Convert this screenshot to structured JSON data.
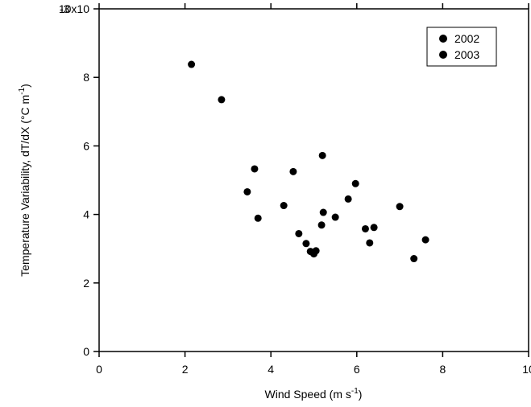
{
  "chart_data": {
    "type": "scatter",
    "title": "",
    "xlabel": {
      "prefix": "Wind Speed (m s",
      "superscript": "-1",
      "suffix": ")"
    },
    "ylabel": {
      "prefix": "Temperature Variability, dT/dX (°C m",
      "superscript": "-1",
      "suffix": ")"
    },
    "xlim": [
      0,
      10
    ],
    "ylim": [
      0,
      0.01
    ],
    "x_ticks": [
      {
        "value": 0,
        "label": "0"
      },
      {
        "value": 2,
        "label": "2"
      },
      {
        "value": 4,
        "label": "4"
      },
      {
        "value": 6,
        "label": "6"
      },
      {
        "value": 8,
        "label": "8"
      },
      {
        "value": 10,
        "label": "10"
      }
    ],
    "y_ticks": [
      {
        "value": 0,
        "label": "0"
      },
      {
        "value": 0.002,
        "label": "2"
      },
      {
        "value": 0.004,
        "label": "4"
      },
      {
        "value": 0.006,
        "label": "6"
      },
      {
        "value": 0.008,
        "label": "8"
      },
      {
        "value": 0.01,
        "label": "10x10"
      }
    ],
    "y_exponent_label": "-3",
    "grid": false,
    "legend": {
      "placement": "top-right",
      "entries": [
        "2002",
        "2003"
      ]
    },
    "marker_color": "#000000",
    "series": [
      {
        "name": "2002",
        "points": [
          [
            2.15,
            0.00838
          ],
          [
            2.85,
            0.00735
          ],
          [
            3.45,
            0.00466
          ],
          [
            3.62,
            0.00533
          ],
          [
            3.7,
            0.00389
          ],
          [
            4.3,
            0.00426
          ],
          [
            4.52,
            0.00525
          ],
          [
            4.65,
            0.00344
          ],
          [
            4.82,
            0.00315
          ],
          [
            4.92,
            0.00292
          ],
          [
            5.0,
            0.00285
          ],
          [
            5.05,
            0.00294
          ],
          [
            5.18,
            0.00369
          ],
          [
            5.2,
            0.00572
          ],
          [
            5.22,
            0.00406
          ]
        ]
      },
      {
        "name": "2003",
        "points": [
          [
            5.5,
            0.00392
          ],
          [
            5.8,
            0.00445
          ],
          [
            5.97,
            0.0049
          ],
          [
            6.2,
            0.00358
          ],
          [
            6.3,
            0.00317
          ],
          [
            6.4,
            0.00362
          ],
          [
            7.0,
            0.00423
          ],
          [
            7.33,
            0.00271
          ],
          [
            7.6,
            0.00326
          ]
        ]
      }
    ]
  }
}
